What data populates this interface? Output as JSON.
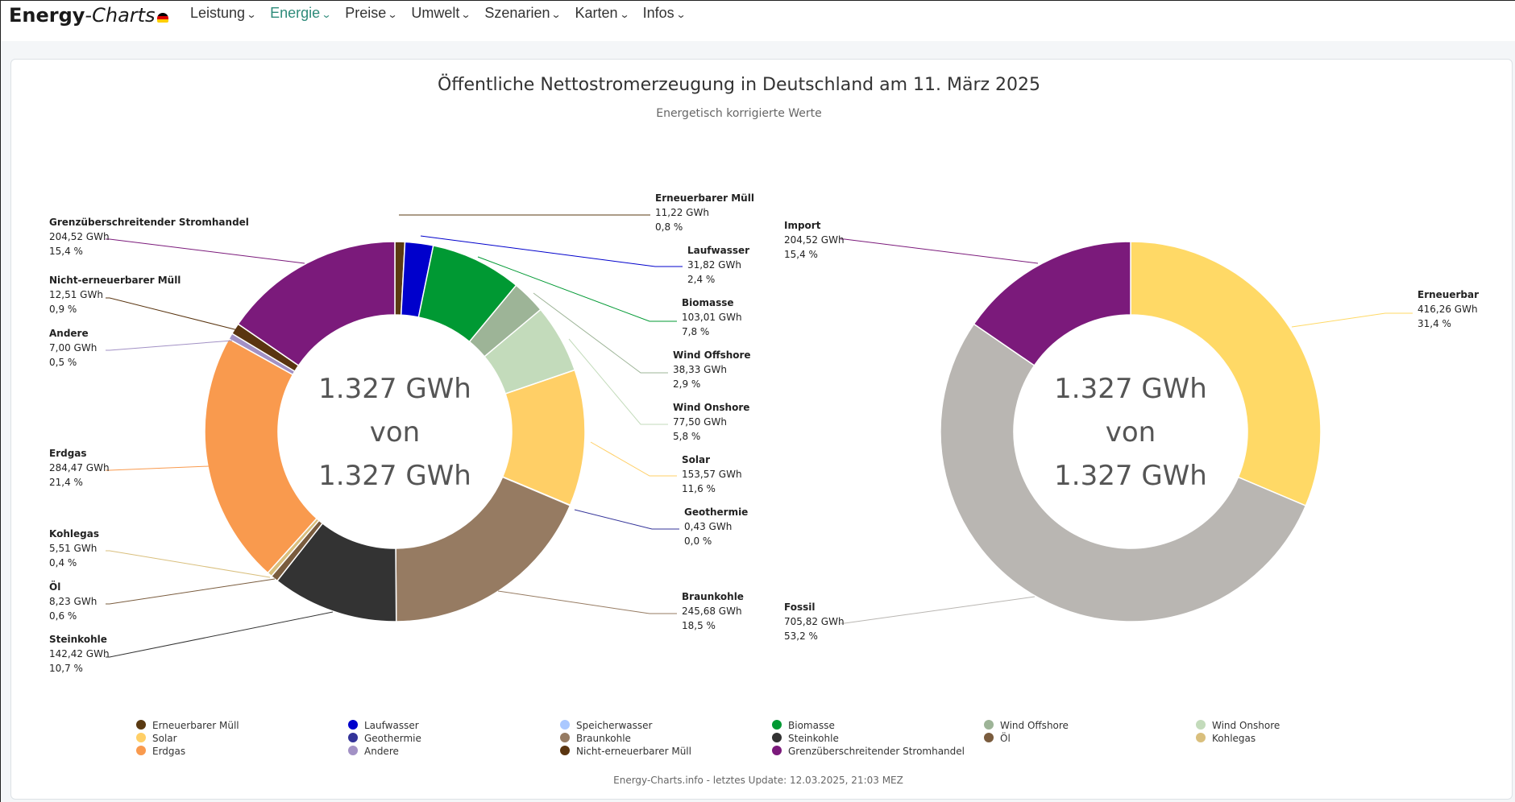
{
  "logo": {
    "part1": "Energy",
    "sep": "-",
    "part2": "Charts"
  },
  "nav": [
    {
      "label": "Leistung",
      "active": false
    },
    {
      "label": "Energie",
      "active": true
    },
    {
      "label": "Preise",
      "active": false
    },
    {
      "label": "Umwelt",
      "active": false
    },
    {
      "label": "Szenarien",
      "active": false
    },
    {
      "label": "Karten",
      "active": false
    },
    {
      "label": "Infos",
      "active": false
    }
  ],
  "colors": {
    "accent": "#2e8b7a"
  },
  "chart_data": [
    {
      "type": "pie",
      "title": "Öffentliche Nettostromerzeugung in Deutschland am 11. März 2025",
      "subtitle": "Energetisch korrigierte Werte",
      "center_lines": [
        "1.327 GWh",
        "von",
        "1.327 GWh"
      ],
      "unit": "GWh",
      "slices": [
        {
          "name": "Erneuerbarer Müll",
          "value": 11.22,
          "value_label": "11,22 GWh",
          "pct": "0,8 %",
          "color": "#5a3a12"
        },
        {
          "name": "Laufwasser",
          "value": 31.82,
          "value_label": "31,82 GWh",
          "pct": "2,4 %",
          "color": "#0000cc"
        },
        {
          "name": "Biomasse",
          "value": 103.01,
          "value_label": "103,01 GWh",
          "pct": "7,8 %",
          "color": "#009933"
        },
        {
          "name": "Wind Offshore",
          "value": 38.33,
          "value_label": "38,33 GWh",
          "pct": "2,9 %",
          "color": "#9db497"
        },
        {
          "name": "Wind Onshore",
          "value": 77.5,
          "value_label": "77,50 GWh",
          "pct": "5,8 %",
          "color": "#c3dbbb"
        },
        {
          "name": "Solar",
          "value": 153.57,
          "value_label": "153,57 GWh",
          "pct": "11,6 %",
          "color": "#ffcf66"
        },
        {
          "name": "Geothermie",
          "value": 0.43,
          "value_label": "0,43 GWh",
          "pct": "0,0 %",
          "color": "#333399"
        },
        {
          "name": "Braunkohle",
          "value": 245.68,
          "value_label": "245,68 GWh",
          "pct": "18,5 %",
          "color": "#967b62"
        },
        {
          "name": "Steinkohle",
          "value": 142.42,
          "value_label": "142,42 GWh",
          "pct": "10,7 %",
          "color": "#333333"
        },
        {
          "name": "Öl",
          "value": 8.23,
          "value_label": "8,23 GWh",
          "pct": "0,6 %",
          "color": "#7a5c3e"
        },
        {
          "name": "Kohlegas",
          "value": 5.51,
          "value_label": "5,51 GWh",
          "pct": "0,4 %",
          "color": "#d9bf7d"
        },
        {
          "name": "Erdgas",
          "value": 284.47,
          "value_label": "284,47 GWh",
          "pct": "21,4 %",
          "color": "#f99a4e"
        },
        {
          "name": "Andere",
          "value": 7.0,
          "value_label": "7,00 GWh",
          "pct": "0,5 %",
          "color": "#a291c5"
        },
        {
          "name": "Nicht-erneuerbarer Müll",
          "value": 12.51,
          "value_label": "12,51 GWh",
          "pct": "0,9 %",
          "color": "#5a3510"
        },
        {
          "name": "Grenzüberschreitender Stromhandel",
          "value": 204.52,
          "value_label": "204,52 GWh",
          "pct": "15,4 %",
          "color": "#7b1a7b"
        }
      ]
    },
    {
      "type": "pie",
      "center_lines": [
        "1.327 GWh",
        "von",
        "1.327 GWh"
      ],
      "unit": "GWh",
      "slices": [
        {
          "name": "Erneuerbar",
          "value": 416.26,
          "value_label": "416,26 GWh",
          "pct": "31,4 %",
          "color": "#ffd966"
        },
        {
          "name": "Fossil",
          "value": 705.82,
          "value_label": "705,82 GWh",
          "pct": "53,2 %",
          "color": "#b9b6b2"
        },
        {
          "name": "Import",
          "value": 204.52,
          "value_label": "204,52 GWh",
          "pct": "15,4 %",
          "color": "#7b1a7b"
        }
      ]
    }
  ],
  "legend": [
    {
      "label": "Erneuerbarer Müll",
      "color": "#5a3a12"
    },
    {
      "label": "Laufwasser",
      "color": "#0000cc"
    },
    {
      "label": "Speicherwasser",
      "color": "#aac8ff"
    },
    {
      "label": "Biomasse",
      "color": "#009933"
    },
    {
      "label": "Wind Offshore",
      "color": "#9db497"
    },
    {
      "label": "Wind Onshore",
      "color": "#c3dbbb"
    },
    {
      "label": "Solar",
      "color": "#ffcf66"
    },
    {
      "label": "Geothermie",
      "color": "#333399"
    },
    {
      "label": "Braunkohle",
      "color": "#967b62"
    },
    {
      "label": "Steinkohle",
      "color": "#333333"
    },
    {
      "label": "Öl",
      "color": "#7a5c3e"
    },
    {
      "label": "Kohlegas",
      "color": "#d9bf7d"
    },
    {
      "label": "Erdgas",
      "color": "#f99a4e"
    },
    {
      "label": "Andere",
      "color": "#a291c5"
    },
    {
      "label": "Nicht-erneuerbarer Müll",
      "color": "#5a3510"
    },
    {
      "label": "Grenzüberschreitender Stromhandel",
      "color": "#7b1a7b"
    }
  ],
  "footer": "Energy-Charts.info - letztes Update: 12.03.2025, 21:03 MEZ"
}
